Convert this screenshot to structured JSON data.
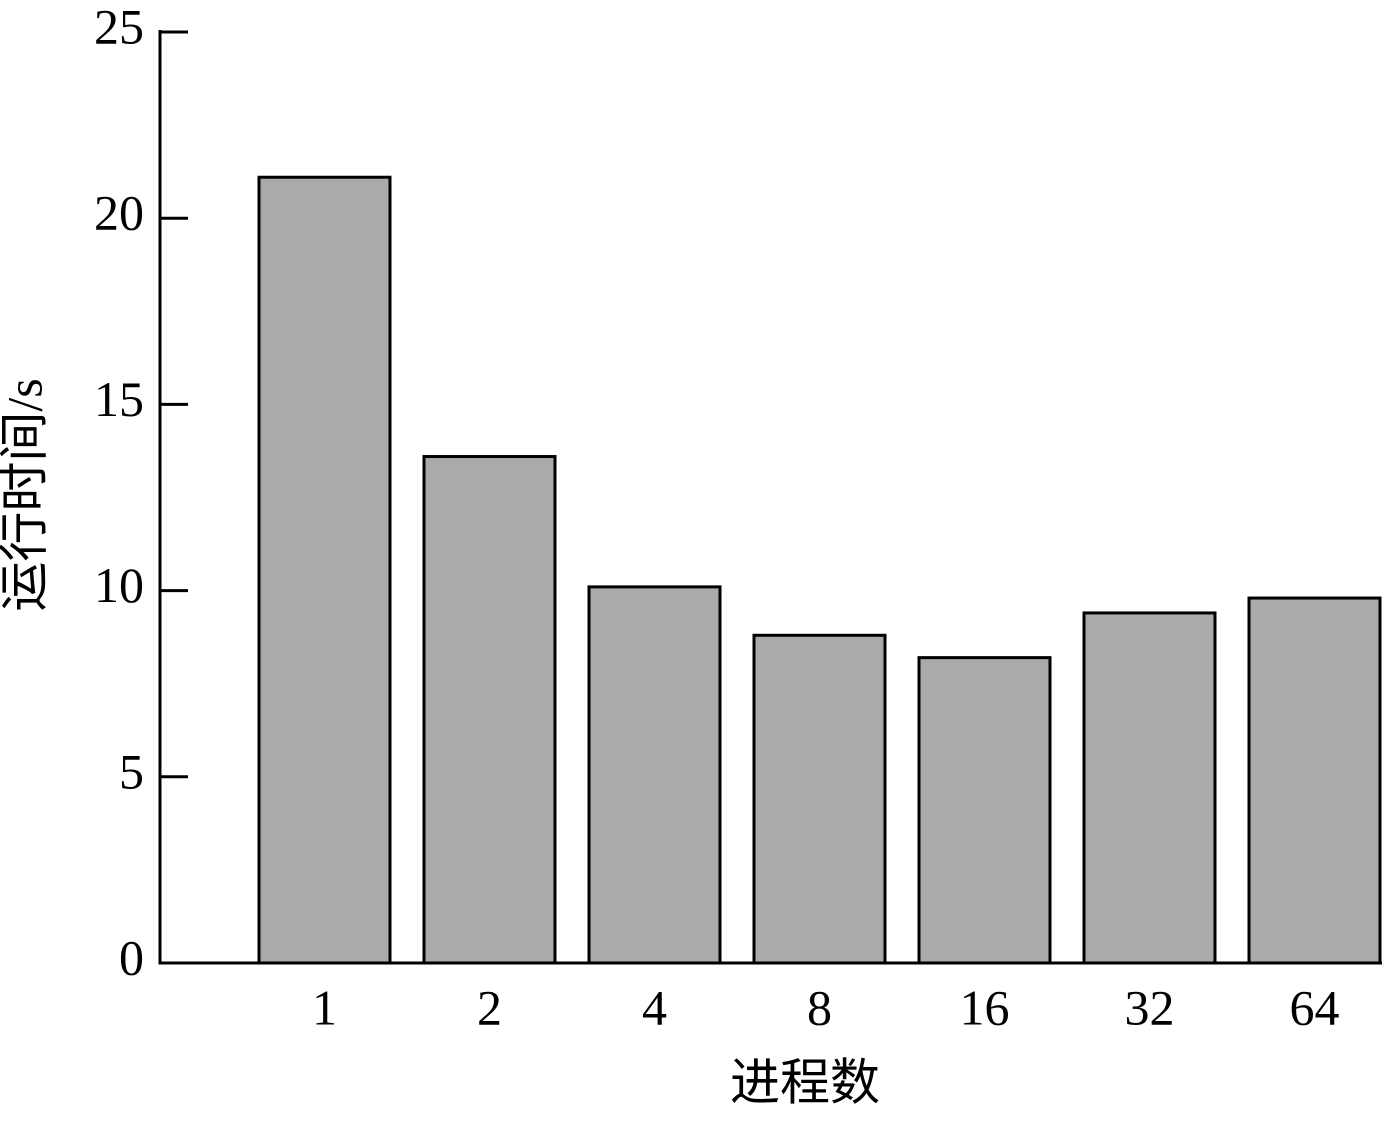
{
  "chart_data": {
    "type": "bar",
    "xlabel": "进程数",
    "ylabel": "运行时间/s",
    "categories": [
      "1",
      "2",
      "4",
      "8",
      "16",
      "32",
      "64"
    ],
    "values": [
      21.1,
      13.6,
      10.1,
      8.8,
      8.2,
      9.4,
      9.8
    ],
    "color": "#aaaaaa",
    "ylim": [
      0,
      25
    ],
    "yticks": [
      0,
      5,
      10,
      15,
      20,
      25
    ]
  }
}
